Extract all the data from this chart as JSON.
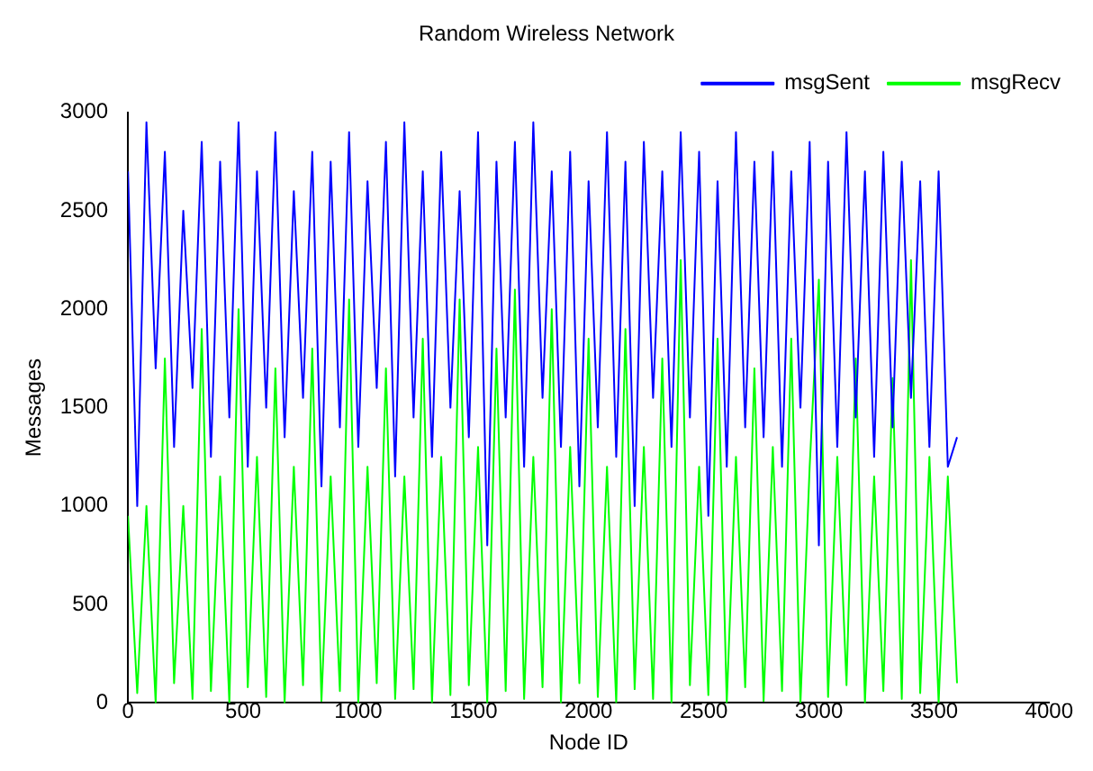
{
  "chart_data": {
    "type": "line",
    "title": "Random Wireless Network",
    "xlabel": "Node ID",
    "ylabel": "Messages",
    "x": [
      0,
      40,
      80,
      120,
      160,
      200,
      240,
      280,
      320,
      360,
      400,
      440,
      480,
      520,
      560,
      600,
      640,
      680,
      720,
      760,
      800,
      840,
      880,
      920,
      960,
      1000,
      1040,
      1080,
      1120,
      1160,
      1200,
      1240,
      1280,
      1320,
      1360,
      1400,
      1440,
      1480,
      1520,
      1560,
      1600,
      1640,
      1680,
      1720,
      1760,
      1800,
      1840,
      1880,
      1920,
      1960,
      2000,
      2040,
      2080,
      2120,
      2160,
      2200,
      2240,
      2280,
      2320,
      2360,
      2400,
      2440,
      2480,
      2520,
      2560,
      2600,
      2640,
      2680,
      2720,
      2760,
      2800,
      2840,
      2880,
      2920,
      2960,
      3000,
      3040,
      3080,
      3120,
      3160,
      3200,
      3240,
      3280,
      3320,
      3360,
      3400,
      3440,
      3480,
      3520,
      3560,
      3600
    ],
    "series": [
      {
        "name": "msgSent",
        "color": "#0000ff",
        "values": [
          2700,
          1000,
          2950,
          1700,
          2800,
          1300,
          2500,
          1600,
          2850,
          1250,
          2750,
          1450,
          2950,
          1200,
          2700,
          1500,
          2900,
          1350,
          2600,
          1550,
          2800,
          1100,
          2750,
          1400,
          2900,
          1300,
          2650,
          1600,
          2850,
          1150,
          2950,
          1450,
          2700,
          1250,
          2800,
          1500,
          2600,
          1350,
          2900,
          800,
          2750,
          1450,
          2850,
          1200,
          2950,
          1550,
          2700,
          1300,
          2800,
          1100,
          2650,
          1400,
          2900,
          1250,
          2750,
          1000,
          2850,
          1550,
          2700,
          1300,
          2900,
          1450,
          2800,
          950,
          2650,
          1200,
          2900,
          1400,
          2750,
          1350,
          2800,
          1200,
          2700,
          1500,
          2850,
          800,
          2750,
          1300,
          2900,
          1450,
          2700,
          1250,
          2800,
          1400,
          2750,
          1550,
          2650,
          1300,
          2700,
          1200,
          1350
        ]
      },
      {
        "name": "msgRecv",
        "color": "#00ff00",
        "values": [
          950,
          50,
          1000,
          0,
          1750,
          100,
          1000,
          20,
          1900,
          60,
          1150,
          0,
          2000,
          80,
          1250,
          30,
          1700,
          0,
          1200,
          90,
          1800,
          10,
          1150,
          60,
          2050,
          0,
          1200,
          100,
          1700,
          20,
          1150,
          70,
          1850,
          0,
          1250,
          40,
          2050,
          90,
          1300,
          0,
          1800,
          60,
          2100,
          20,
          1250,
          80,
          2000,
          0,
          1300,
          100,
          1850,
          30,
          1200,
          0,
          1900,
          70,
          1300,
          20,
          1750,
          0,
          2250,
          90,
          1200,
          40,
          1850,
          0,
          1250,
          80,
          1700,
          10,
          1300,
          60,
          1850,
          0,
          1200,
          2150,
          30,
          1250,
          90,
          1750,
          0,
          1150,
          60,
          1650,
          20,
          2250,
          50,
          1250,
          0,
          1150,
          100
        ]
      }
    ],
    "xlim": [
      0,
      4000
    ],
    "xticks": [
      0,
      500,
      1000,
      1500,
      2000,
      2500,
      3000,
      3500,
      4000
    ],
    "ylim": [
      0,
      3000
    ],
    "yticks": [
      0,
      500,
      1000,
      1500,
      2000,
      2500,
      3000
    ],
    "grid": false,
    "legend": "top right",
    "marker": "none",
    "line_style": "solid"
  }
}
